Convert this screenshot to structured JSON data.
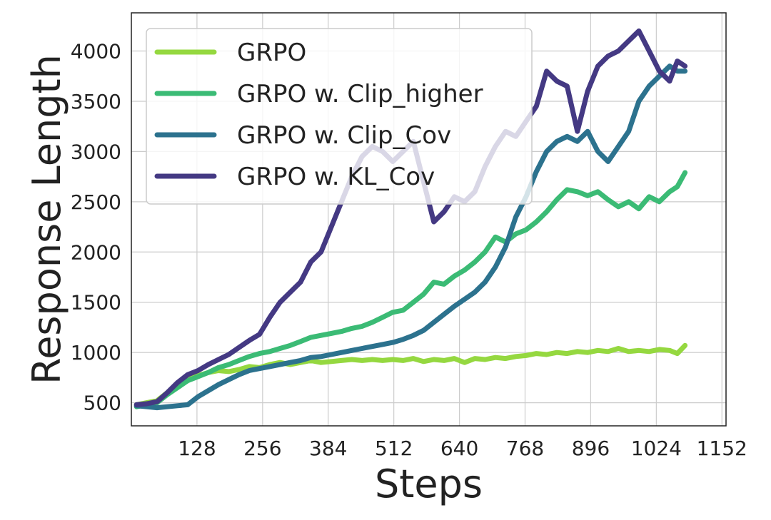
{
  "chart_data": {
    "type": "line",
    "title": "",
    "xlabel": "Steps",
    "ylabel": "Response Length",
    "xlim": [
      0,
      1160
    ],
    "ylim": [
      270,
      4380
    ],
    "xticks": [
      128,
      256,
      384,
      512,
      640,
      768,
      896,
      1024,
      1152
    ],
    "yticks": [
      500,
      1000,
      1500,
      2000,
      2500,
      3000,
      3500,
      4000
    ],
    "grid": true,
    "legend": "top-left",
    "series": [
      {
        "name": "GRPO",
        "color": "#95d840",
        "x": [
          10,
          30,
          50,
          70,
          90,
          110,
          130,
          150,
          170,
          190,
          210,
          230,
          250,
          270,
          290,
          310,
          330,
          350,
          370,
          390,
          410,
          430,
          450,
          470,
          490,
          510,
          530,
          550,
          570,
          590,
          610,
          630,
          650,
          670,
          690,
          710,
          730,
          750,
          770,
          790,
          810,
          830,
          850,
          870,
          890,
          910,
          930,
          950,
          970,
          990,
          1010,
          1030,
          1050,
          1065,
          1080
        ],
        "y": [
          480,
          500,
          520,
          600,
          690,
          750,
          770,
          800,
          820,
          810,
          830,
          860,
          850,
          880,
          900,
          880,
          900,
          920,
          900,
          910,
          920,
          930,
          920,
          930,
          920,
          930,
          920,
          940,
          910,
          930,
          920,
          940,
          900,
          940,
          930,
          950,
          940,
          960,
          970,
          990,
          980,
          1000,
          990,
          1010,
          1000,
          1020,
          1010,
          1040,
          1010,
          1020,
          1010,
          1030,
          1020,
          990,
          1070
        ]
      },
      {
        "name": "GRPO w. Clip_higher",
        "color": "#3bbb75",
        "x": [
          10,
          30,
          50,
          70,
          90,
          110,
          130,
          150,
          170,
          190,
          210,
          230,
          250,
          270,
          290,
          310,
          330,
          350,
          370,
          390,
          410,
          430,
          450,
          470,
          490,
          510,
          530,
          550,
          570,
          590,
          610,
          630,
          650,
          670,
          690,
          710,
          730,
          750,
          770,
          790,
          810,
          830,
          850,
          870,
          890,
          910,
          930,
          950,
          970,
          990,
          1010,
          1030,
          1050,
          1065,
          1080
        ],
        "y": [
          460,
          480,
          500,
          580,
          650,
          720,
          760,
          800,
          850,
          880,
          920,
          960,
          990,
          1010,
          1040,
          1070,
          1110,
          1150,
          1170,
          1190,
          1210,
          1240,
          1260,
          1300,
          1350,
          1400,
          1420,
          1500,
          1580,
          1700,
          1680,
          1760,
          1820,
          1900,
          2000,
          2150,
          2100,
          2180,
          2220,
          2300,
          2400,
          2520,
          2620,
          2600,
          2560,
          2600,
          2520,
          2450,
          2500,
          2430,
          2550,
          2500,
          2600,
          2650,
          2790
        ]
      },
      {
        "name": "GRPO w. Clip_Cov",
        "color": "#2c728e",
        "x": [
          10,
          30,
          50,
          70,
          90,
          110,
          130,
          150,
          170,
          190,
          210,
          230,
          250,
          270,
          290,
          310,
          330,
          350,
          370,
          390,
          410,
          430,
          450,
          470,
          490,
          510,
          530,
          550,
          570,
          590,
          610,
          630,
          650,
          670,
          690,
          710,
          730,
          750,
          770,
          790,
          810,
          830,
          850,
          870,
          890,
          910,
          930,
          950,
          970,
          990,
          1010,
          1030,
          1050,
          1065,
          1080
        ],
        "y": [
          470,
          460,
          450,
          460,
          470,
          480,
          560,
          620,
          680,
          730,
          780,
          820,
          840,
          860,
          880,
          900,
          920,
          950,
          960,
          980,
          1000,
          1020,
          1040,
          1060,
          1080,
          1100,
          1130,
          1170,
          1220,
          1300,
          1380,
          1460,
          1530,
          1600,
          1700,
          1850,
          2050,
          2350,
          2550,
          2800,
          3000,
          3100,
          3150,
          3100,
          3200,
          3000,
          2900,
          3050,
          3200,
          3500,
          3650,
          3750,
          3850,
          3800,
          3800
        ]
      },
      {
        "name": "GRPO w. KL_Cov",
        "color": "#443983",
        "x": [
          10,
          30,
          50,
          70,
          90,
          110,
          130,
          150,
          170,
          190,
          210,
          230,
          250,
          270,
          290,
          310,
          330,
          350,
          370,
          390,
          410,
          430,
          450,
          470,
          490,
          510,
          530,
          550,
          570,
          590,
          610,
          630,
          650,
          670,
          690,
          710,
          730,
          750,
          770,
          790,
          810,
          830,
          850,
          870,
          890,
          910,
          930,
          950,
          970,
          990,
          1010,
          1030,
          1050,
          1065,
          1080
        ],
        "y": [
          480,
          490,
          510,
          600,
          700,
          780,
          820,
          880,
          930,
          980,
          1050,
          1120,
          1180,
          1350,
          1500,
          1600,
          1700,
          1900,
          2000,
          2250,
          2500,
          2750,
          2950,
          3050,
          3000,
          2900,
          3000,
          3100,
          2700,
          2300,
          2400,
          2550,
          2500,
          2600,
          2850,
          3050,
          3200,
          3150,
          3300,
          3450,
          3800,
          3700,
          3650,
          3200,
          3600,
          3850,
          3950,
          4000,
          4100,
          4200,
          4000,
          3800,
          3700,
          3900,
          3850
        ]
      }
    ]
  }
}
